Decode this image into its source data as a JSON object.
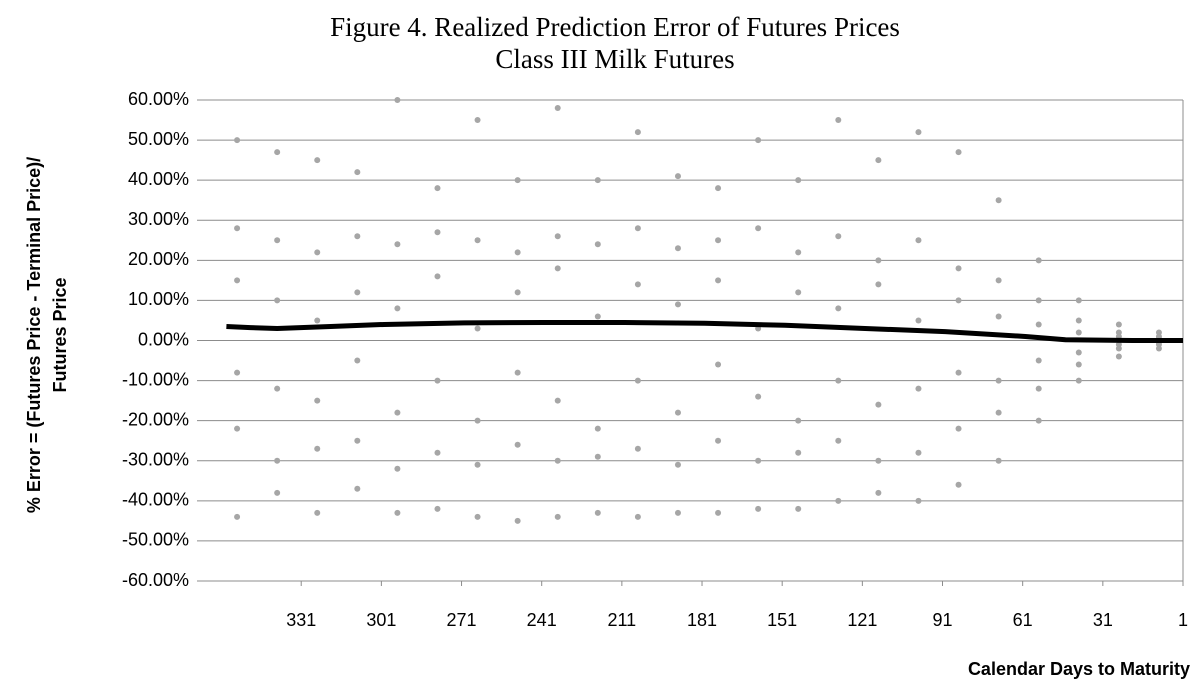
{
  "chart_data": {
    "type": "scatter",
    "title": "Figure 4. Realized Prediction Error of Futures Prices",
    "subtitle": "Class III Milk Futures",
    "y_label": [
      "% Error = (Futures Price - Terminal Price)/",
      "Futures Price"
    ],
    "x_label": "Calendar Days to Maturity",
    "xlim": [
      370,
      1
    ],
    "xticks": [
      331,
      301,
      271,
      241,
      211,
      181,
      151,
      121,
      91,
      61,
      31,
      1
    ],
    "ylim": [
      -60,
      60
    ],
    "yticks": [
      {
        "value": 60,
        "label": "60.00%"
      },
      {
        "value": 50,
        "label": "50.00%"
      },
      {
        "value": 40,
        "label": "40.00%"
      },
      {
        "value": 30,
        "label": "30.00%"
      },
      {
        "value": 20,
        "label": "20.00%"
      },
      {
        "value": 10,
        "label": "10.00%"
      },
      {
        "value": 0,
        "label": "0.00%"
      },
      {
        "value": -10,
        "label": "-10.00%"
      },
      {
        "value": -20,
        "label": "-20.00%"
      },
      {
        "value": -30,
        "label": "-30.00%"
      },
      {
        "value": -40,
        "label": "-40.00%"
      },
      {
        "value": -50,
        "label": "-50.00%"
      },
      {
        "value": -60,
        "label": "-60.00%"
      }
    ],
    "grid": true,
    "series": [
      {
        "mode": "markers",
        "color": "#a6a6a6",
        "x": [
          355,
          355,
          355,
          355,
          355,
          355,
          340,
          340,
          340,
          340,
          340,
          340,
          325,
          325,
          325,
          325,
          325,
          325,
          310,
          310,
          310,
          310,
          310,
          310,
          295,
          295,
          295,
          295,
          295,
          295,
          280,
          280,
          280,
          280,
          280,
          280,
          265,
          265,
          265,
          265,
          265,
          265,
          250,
          250,
          250,
          250,
          250,
          250,
          235,
          235,
          235,
          235,
          235,
          235,
          220,
          220,
          220,
          220,
          220,
          220,
          205,
          205,
          205,
          205,
          205,
          205,
          190,
          190,
          190,
          190,
          190,
          190,
          175,
          175,
          175,
          175,
          175,
          175,
          160,
          160,
          160,
          160,
          160,
          160,
          145,
          145,
          145,
          145,
          145,
          145,
          130,
          130,
          130,
          130,
          130,
          130,
          115,
          115,
          115,
          115,
          115,
          115,
          100,
          100,
          100,
          100,
          100,
          100,
          85,
          85,
          85,
          85,
          85,
          85,
          70,
          70,
          70,
          70,
          70,
          70,
          55,
          55,
          55,
          55,
          55,
          55,
          40,
          40,
          40,
          40,
          40,
          40,
          25,
          25,
          25,
          25,
          25,
          25,
          10,
          10,
          10,
          10,
          10,
          10
        ],
        "values": [
          50,
          28,
          15,
          -8,
          -22,
          -44,
          47,
          25,
          10,
          -12,
          -30,
          -38,
          45,
          22,
          5,
          -15,
          -27,
          -43,
          42,
          26,
          12,
          -5,
          -25,
          -37,
          60,
          24,
          8,
          -18,
          -32,
          -43,
          38,
          27,
          16,
          -10,
          -28,
          -42,
          55,
          25,
          3,
          -20,
          -31,
          -44,
          40,
          22,
          12,
          -8,
          -26,
          -45,
          58,
          26,
          18,
          -15,
          -30,
          -44,
          40,
          24,
          6,
          -22,
          -29,
          -43,
          52,
          28,
          14,
          -10,
          -27,
          -44,
          41,
          23,
          9,
          -18,
          -31,
          -43,
          38,
          25,
          15,
          -6,
          -25,
          -43,
          50,
          28,
          3,
          -14,
          -30,
          -42,
          40,
          22,
          12,
          -20,
          -28,
          -42,
          55,
          26,
          8,
          -10,
          -25,
          -40,
          45,
          20,
          14,
          -16,
          -30,
          -38,
          52,
          25,
          5,
          -12,
          -28,
          -40,
          47,
          18,
          10,
          -8,
          -22,
          -36,
          35,
          15,
          6,
          -10,
          -18,
          -30,
          20,
          10,
          4,
          -5,
          -12,
          -20,
          10,
          5,
          2,
          -3,
          -6,
          -10,
          4,
          2,
          1,
          -1,
          -2,
          -4,
          2,
          1,
          0.5,
          -0.5,
          -1,
          -2
        ]
      },
      {
        "mode": "line",
        "color": "#000000",
        "x": [
          359,
          350,
          340,
          320,
          300,
          270,
          240,
          210,
          180,
          150,
          120,
          90,
          60,
          45,
          20,
          1
        ],
        "values": [
          3.5,
          3.2,
          3,
          3.5,
          4,
          4.4,
          4.5,
          4.5,
          4.3,
          3.8,
          3,
          2.2,
          1,
          0.2,
          0,
          0
        ]
      }
    ]
  }
}
